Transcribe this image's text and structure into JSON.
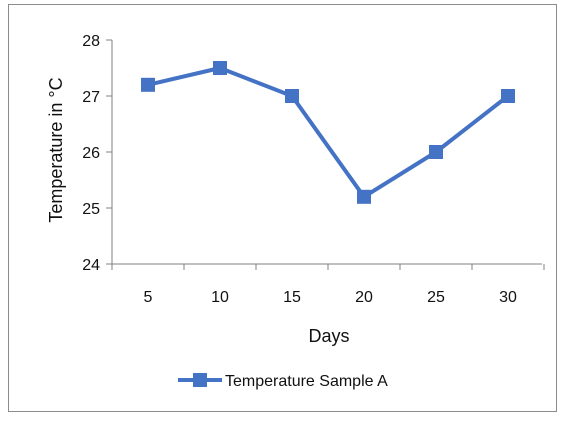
{
  "chart_data": {
    "type": "line",
    "title": "",
    "xlabel": "Days",
    "ylabel": "Temperature in °C",
    "x": [
      5,
      10,
      15,
      20,
      25,
      30
    ],
    "categories": [
      "5",
      "10",
      "15",
      "20",
      "25",
      "30"
    ],
    "ylim": [
      24,
      28
    ],
    "yticks": [
      24,
      25,
      26,
      27,
      28
    ],
    "yticks_labels": [
      "24",
      "25",
      "26",
      "27",
      "28"
    ],
    "grid": false,
    "legend_position": "bottom",
    "series": [
      {
        "name": "Temperature Sample A",
        "values": [
          27.2,
          27.5,
          27.0,
          25.2,
          26.0,
          27.0
        ],
        "color": "#4472C4",
        "marker": "square"
      }
    ]
  }
}
